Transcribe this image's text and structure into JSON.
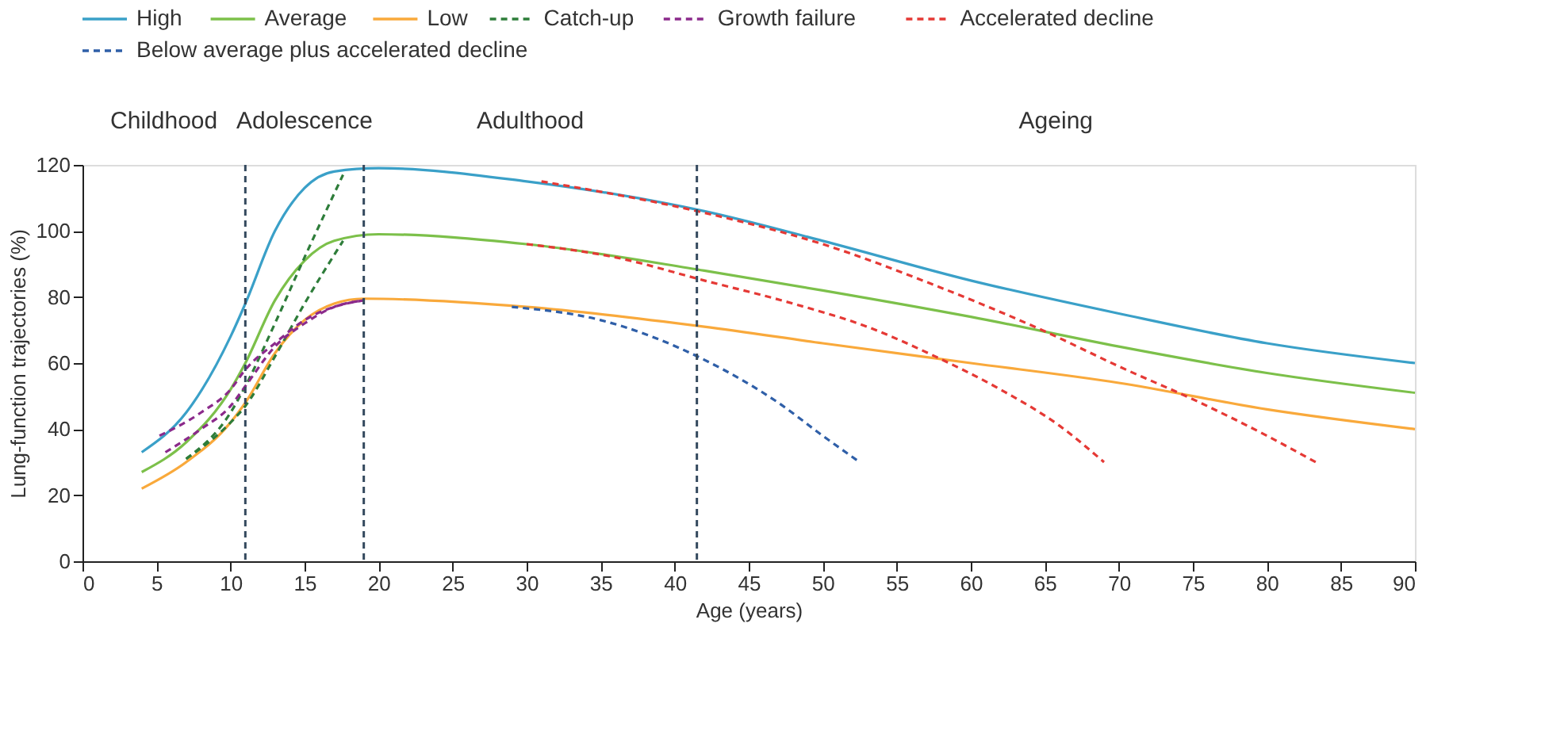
{
  "chart_data": {
    "type": "line",
    "xlabel": "Age (years)",
    "ylabel": "Lung-function trajectories (%)",
    "xlim": [
      0,
      90
    ],
    "xticks": [
      0,
      5,
      10,
      15,
      20,
      25,
      30,
      35,
      40,
      45,
      50,
      55,
      60,
      65,
      70,
      75,
      80,
      85,
      90
    ],
    "ylim": [
      0,
      120
    ],
    "yticks": [
      0,
      20,
      40,
      60,
      80,
      100,
      120
    ],
    "grid": false,
    "legend": "top",
    "marker": "none",
    "series": [
      {
        "name": "High",
        "color": "#3aa0c8",
        "line_style": "solid",
        "x": [
          4,
          7,
          10,
          11,
          13,
          15,
          17,
          20,
          30,
          42,
          50,
          60,
          70,
          80,
          90
        ],
        "values": [
          33,
          45,
          68,
          78,
          100,
          113,
          118,
          119,
          115,
          106,
          97,
          85,
          75,
          66,
          60
        ]
      },
      {
        "name": "Average",
        "color": "#7cc04a",
        "line_style": "solid",
        "x": [
          4,
          7,
          10,
          11,
          13,
          15,
          17,
          20,
          30,
          42,
          50,
          60,
          70,
          80,
          90
        ],
        "values": [
          27,
          36,
          52,
          60,
          79,
          91,
          97,
          99,
          96,
          88,
          82,
          74,
          65,
          57,
          51
        ]
      },
      {
        "name": "Low",
        "color": "#f9a93b",
        "line_style": "solid",
        "x": [
          4,
          7,
          10,
          11,
          13,
          15,
          17,
          19,
          30,
          42,
          50,
          60,
          70,
          80,
          90
        ],
        "values": [
          22,
          30,
          42,
          48,
          63,
          73,
          78,
          79.5,
          77,
          71,
          66,
          60,
          54,
          46,
          40
        ]
      },
      {
        "name": "Catch-up",
        "color": "#2e7d3a",
        "line_style": "dashed",
        "x": [
          7,
          10,
          11,
          13,
          15,
          17.6
        ],
        "values": [
          31,
          45,
          53,
          72,
          92,
          117
        ]
      },
      {
        "color": "#2e7d3a",
        "line_style": "dashed",
        "x": [
          7,
          10,
          11,
          13,
          15,
          17.6
        ],
        "values": [
          31,
          42,
          47,
          62,
          78,
          97
        ]
      },
      {
        "name": "Growth failure",
        "color": "#8b2a8b",
        "line_style": "dashed",
        "x": [
          5.2,
          8,
          10,
          11,
          13,
          15,
          17,
          19
        ],
        "values": [
          38,
          45,
          52,
          58,
          66,
          73,
          77,
          79
        ]
      },
      {
        "color": "#8b2a8b",
        "line_style": "dashed",
        "x": [
          5.6,
          8,
          10,
          11,
          13,
          15,
          17,
          19
        ],
        "values": [
          33,
          40,
          47,
          53,
          65,
          72,
          77,
          79
        ]
      },
      {
        "name": "Accelerated decline",
        "color": "#e53935",
        "line_style": "dashed",
        "x": [
          31,
          42,
          50,
          57.6,
          65.3,
          70,
          75.5,
          80,
          83.3
        ],
        "values": [
          115,
          105.5,
          96,
          83.5,
          69,
          59,
          48,
          38,
          30
        ]
      },
      {
        "color": "#e53935",
        "line_style": "dashed",
        "x": [
          30,
          36,
          42,
          48,
          53,
          57.6,
          62,
          66,
          69
        ],
        "values": [
          96,
          92,
          85,
          78,
          71,
          62,
          52,
          41,
          30
        ]
      },
      {
        "name": "Below average plus accelerated decline",
        "color": "#2f5fa8",
        "line_style": "dashed",
        "x": [
          29,
          35,
          42,
          47,
          50,
          52.5
        ],
        "values": [
          77,
          73,
          61,
          48,
          38,
          30
        ]
      }
    ],
    "ref_lines": [
      {
        "axis": "x",
        "value": 11,
        "color": "#34495e",
        "line_style": "dashed"
      },
      {
        "axis": "x",
        "value": 19,
        "color": "#34495e",
        "line_style": "dashed"
      },
      {
        "axis": "x",
        "value": 41.5,
        "color": "#34495e",
        "line_style": "dashed"
      }
    ],
    "annotations": [
      "Childhood",
      "Adolescence",
      "Adulthood",
      "Ageing"
    ]
  }
}
